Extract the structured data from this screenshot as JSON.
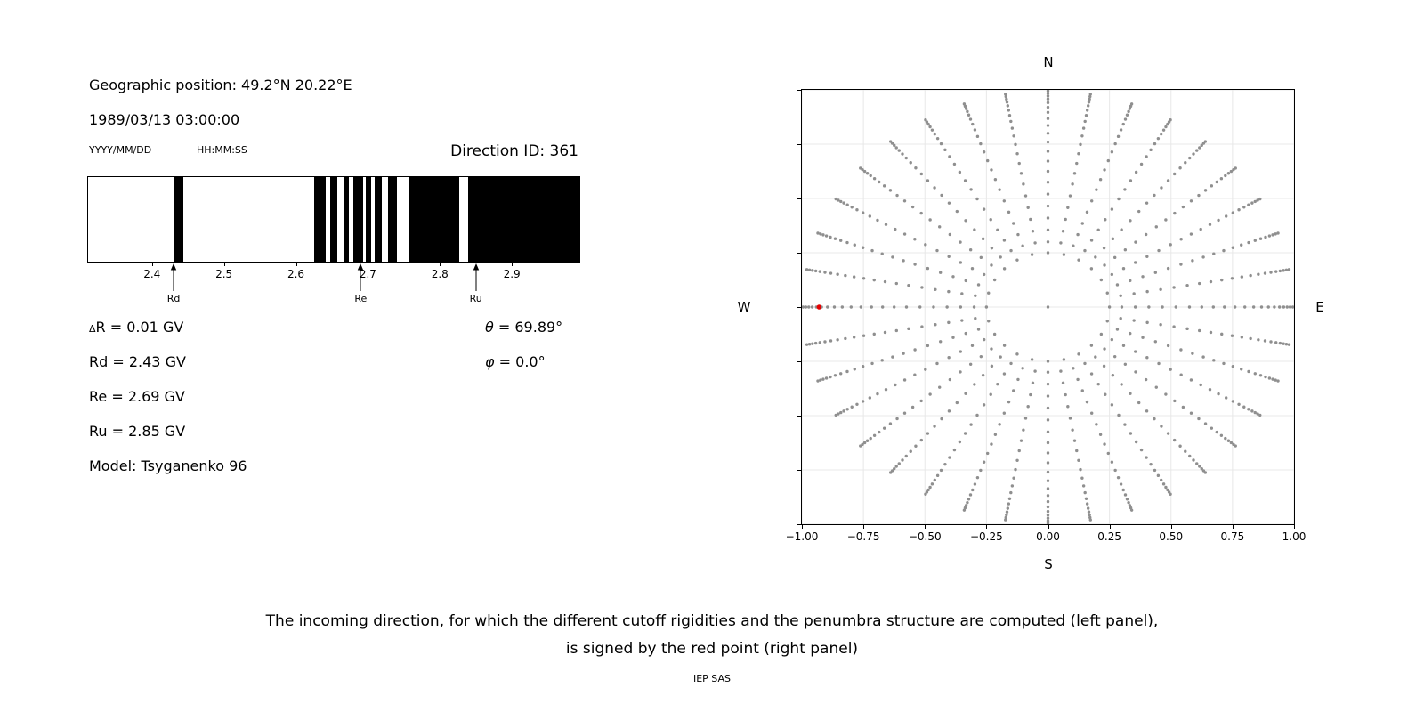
{
  "left_panel": {
    "geographic_position": "Geographic position: 49.2°N 20.22°E",
    "datetime": "1989/03/13 03:00:00",
    "date_format_label": "YYYY/MM/DD",
    "time_format_label": "HH:MM:SS",
    "params": {
      "delta_r": {
        "symbol": "Δ",
        "rest": "R = 0.01 GV"
      },
      "rd": "Rd = 2.43 GV",
      "re": "Re = 2.69 GV",
      "ru": "Ru = 2.85 GV",
      "model": "Model: Tsyganenko 96",
      "theta": {
        "symbol": "θ",
        "rest": " = 69.89°"
      },
      "phi": {
        "symbol": "φ",
        "rest": " = 0.0°"
      }
    }
  },
  "caption": {
    "line1": "The incoming direction, for which the different cutoff rigidities and the penumbra structure are computed (left panel),",
    "line2": "is signed by the red point (right panel)",
    "credit": "IEP SAS"
  },
  "chart_data": [
    {
      "type": "bar",
      "title": "Direction ID: 361",
      "xlabel": "",
      "xlim": [
        2.31,
        2.995
      ],
      "xticks": [
        {
          "v": 2.4,
          "label": "2.4"
        },
        {
          "v": 2.5,
          "label": "2.5"
        },
        {
          "v": 2.6,
          "label": "2.6"
        },
        {
          "v": 2.7,
          "label": "2.7"
        },
        {
          "v": 2.8,
          "label": "2.8"
        },
        {
          "v": 2.9,
          "label": "2.9"
        }
      ],
      "band_color": "#000000",
      "black_bands_gv": [
        [
          2.43,
          2.443
        ],
        [
          2.625,
          2.641
        ],
        [
          2.648,
          2.657
        ],
        [
          2.666,
          2.674
        ],
        [
          2.68,
          2.693
        ],
        [
          2.697,
          2.705
        ],
        [
          2.71,
          2.72
        ],
        [
          2.728,
          2.741
        ],
        [
          2.758,
          2.827
        ],
        [
          2.84,
          2.995
        ]
      ],
      "markers": [
        {
          "label": "Rd",
          "value": 2.43
        },
        {
          "label": "Re",
          "value": 2.69
        },
        {
          "label": "Ru",
          "value": 2.85
        }
      ]
    },
    {
      "type": "scatter",
      "xlim": [
        -1,
        1
      ],
      "ylim": [
        -1,
        1
      ],
      "xticks": [
        {
          "v": -1,
          "label": "−1.00"
        },
        {
          "v": -0.75,
          "label": "−0.75"
        },
        {
          "v": -0.5,
          "label": "−0.50"
        },
        {
          "v": -0.25,
          "label": "−0.25"
        },
        {
          "v": 0,
          "label": "0.00"
        },
        {
          "v": 0.25,
          "label": "0.25"
        },
        {
          "v": 0.5,
          "label": "0.50"
        },
        {
          "v": 0.75,
          "label": "0.75"
        },
        {
          "v": 1,
          "label": "1.00"
        }
      ],
      "yticks": [
        {
          "v": 1,
          "label": "1.00"
        },
        {
          "v": 0.75,
          "label": "0.75"
        },
        {
          "v": 0.5,
          "label": "0.50"
        },
        {
          "v": 0.25,
          "label": "0.25"
        },
        {
          "v": 0,
          "label": "0.00"
        },
        {
          "v": -0.25,
          "label": "−0.25"
        },
        {
          "v": -0.5,
          "label": "−0.50"
        },
        {
          "v": -0.75,
          "label": "−0.75"
        },
        {
          "v": -1,
          "label": "−1.00"
        }
      ],
      "grid": true,
      "grid_color": "#e8e8e8",
      "annotations": {
        "north": "N",
        "south": "S",
        "east": "E",
        "west": "W"
      },
      "dot_color": "#8f8f8f",
      "spoke_angles_deg": [
        0,
        10,
        20,
        30,
        40,
        50,
        60,
        70,
        80,
        90,
        100,
        110,
        120,
        130,
        140,
        150,
        160,
        170,
        180,
        190,
        200,
        210,
        220,
        230,
        240,
        250,
        260,
        270,
        280,
        290,
        300,
        310,
        320,
        330,
        340,
        350
      ],
      "spoke_radii": [
        0.3,
        0.355,
        0.41,
        0.465,
        0.52,
        0.575,
        0.625,
        0.672,
        0.717,
        0.76,
        0.8,
        0.836,
        0.868,
        0.896,
        0.92,
        0.941,
        0.958,
        0.972,
        0.984,
        0.995
      ],
      "ring_radius": 0.25,
      "ring_angles_deg": [
        0,
        15,
        30,
        45,
        60,
        75,
        90,
        105,
        120,
        135,
        150,
        165,
        180,
        195,
        210,
        225,
        240,
        255,
        270,
        285,
        300,
        315,
        330,
        345
      ],
      "center_dot": true,
      "red_point": {
        "x": -0.93,
        "y": 0.0,
        "color": "#e50000"
      }
    }
  ]
}
